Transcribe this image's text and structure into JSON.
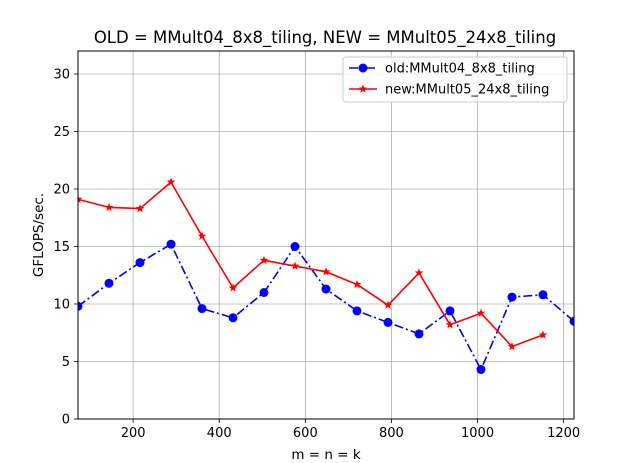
{
  "chart_data": {
    "type": "line",
    "title": "OLD = MMult04_8x8_tiling, NEW = MMult05_24x8_tiling",
    "xlabel": "m = n = k",
    "ylabel": "GFLOPS/sec.",
    "xlim": [
      72,
      1224
    ],
    "ylim": [
      0,
      32
    ],
    "xticks": [
      200,
      400,
      600,
      800,
      1000,
      1200
    ],
    "yticks": [
      0,
      5,
      10,
      15,
      20,
      25,
      30
    ],
    "grid": true,
    "legend_position": "upper right",
    "series": [
      {
        "name": "old:MMult04_8x8_tiling",
        "color": "#0000ff",
        "line_style": "dashdot",
        "marker": "circle",
        "x": [
          72,
          144,
          216,
          288,
          360,
          432,
          504,
          576,
          648,
          720,
          792,
          864,
          936,
          1008,
          1080,
          1152,
          1224
        ],
        "y": [
          9.8,
          11.8,
          13.6,
          15.2,
          9.6,
          8.8,
          11.0,
          15.0,
          11.3,
          9.4,
          8.4,
          7.4,
          9.4,
          4.3,
          10.6,
          10.8,
          8.5
        ]
      },
      {
        "name": "new:MMult05_24x8_tiling",
        "color": "#ff0000",
        "line_style": "solid",
        "marker": "star",
        "x": [
          72,
          144,
          216,
          288,
          360,
          432,
          504,
          576,
          648,
          720,
          792,
          864,
          936,
          1008,
          1080,
          1152
        ],
        "y": [
          19.1,
          18.4,
          18.3,
          20.6,
          15.9,
          11.4,
          13.8,
          13.3,
          12.8,
          11.7,
          9.9,
          12.7,
          8.2,
          9.2,
          6.3,
          7.3
        ]
      }
    ]
  }
}
